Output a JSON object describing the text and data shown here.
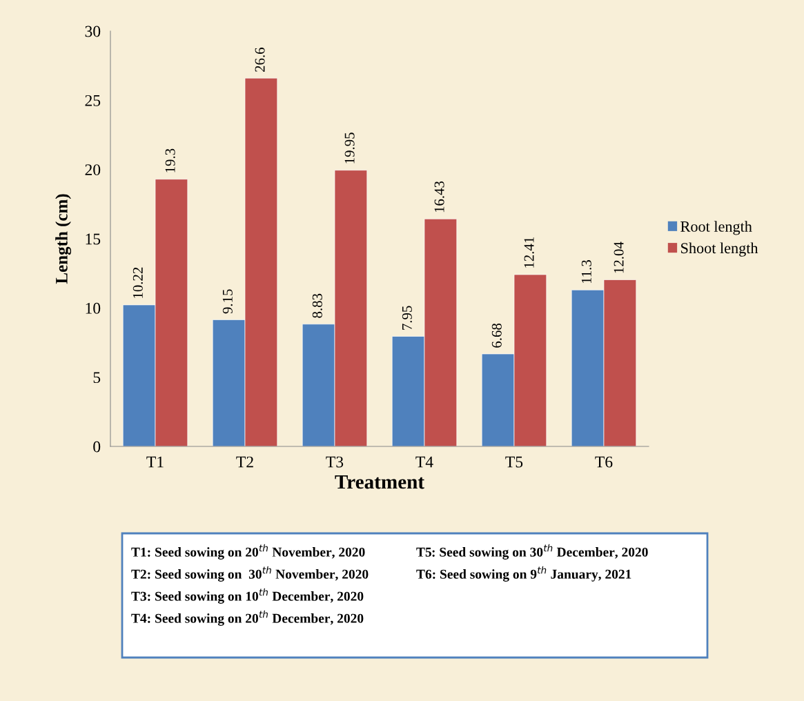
{
  "chart_data": {
    "type": "bar",
    "xlabel": "Treatment",
    "ylabel": "Length (cm)",
    "categories": [
      "T1",
      "T2",
      "T3",
      "T4",
      "T5",
      "T6"
    ],
    "series": [
      {
        "name": "Root length",
        "color": "#4f81bd",
        "values": [
          10.22,
          9.15,
          8.83,
          7.95,
          6.68,
          11.3
        ]
      },
      {
        "name": "Shoot length",
        "color": "#c0504d",
        "values": [
          19.3,
          26.6,
          19.95,
          16.43,
          12.41,
          12.04
        ]
      }
    ],
    "ylim": [
      0,
      30
    ],
    "yticks": [
      0,
      5,
      10,
      15,
      20,
      25,
      30
    ],
    "grid": false,
    "legend": "right",
    "data_labels": true,
    "annotations": [
      "T1: Seed sowing on 20$^{th}$ November, 2020",
      "T2: Seed sowing on  30$^{th}$ November, 2020",
      "T3: Seed sowing on 10$^{th}$ December, 2020",
      "T4: Seed sowing on 20$^{th}$ December, 2020",
      "T5: Seed sowing on 30$^{th}$ December, 2020",
      "T6: Seed sowing on 9$^{th}$ January, 2021"
    ]
  }
}
